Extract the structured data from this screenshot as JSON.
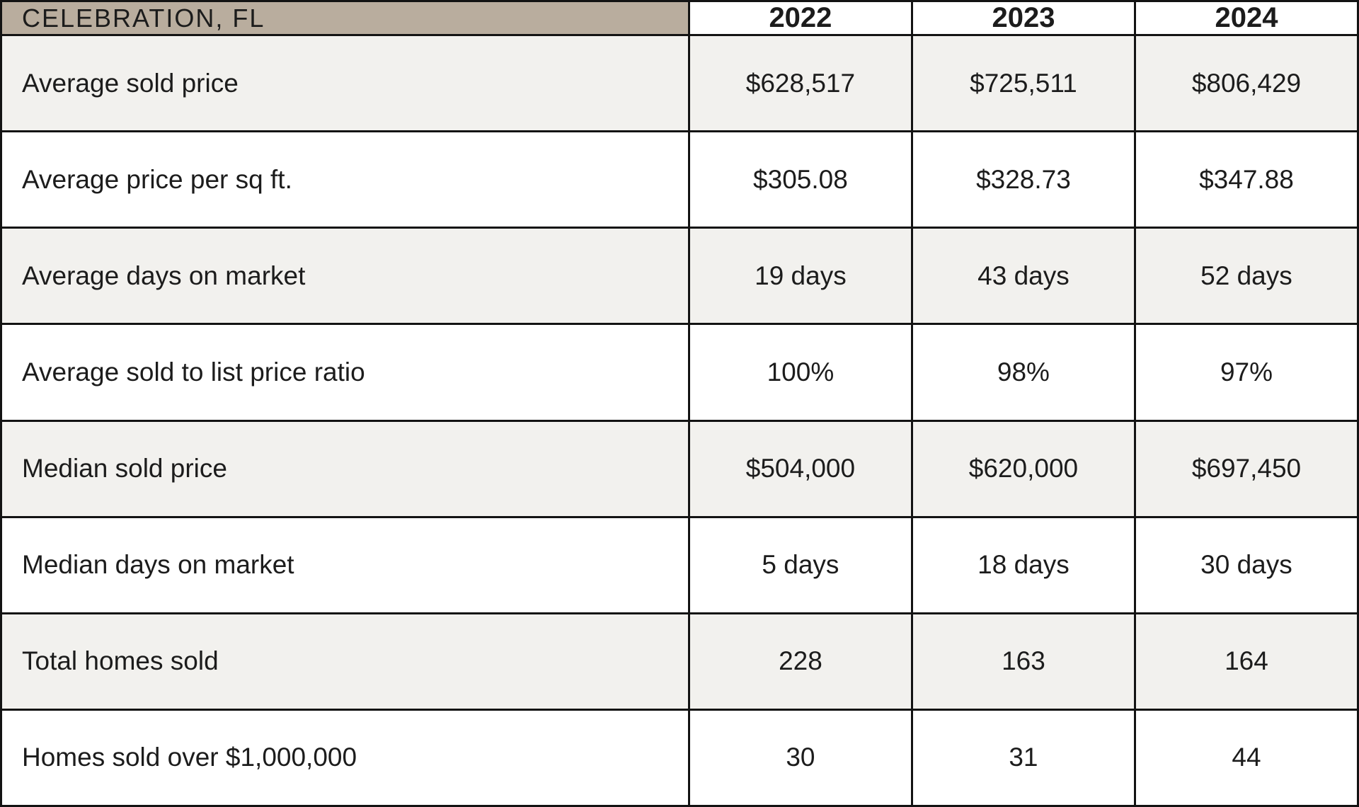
{
  "chart_data": {
    "type": "table",
    "title": "CELEBRATION, FL",
    "years": [
      "2022",
      "2023",
      "2024"
    ],
    "rows": [
      {
        "label": "Average sold price",
        "values": [
          "$628,517",
          "$725,511",
          "$806,429"
        ]
      },
      {
        "label": "Average price per sq ft.",
        "values": [
          "$305.08",
          "$328.73",
          "$347.88"
        ]
      },
      {
        "label": "Average days on market",
        "values": [
          "19 days",
          "43 days",
          "52 days"
        ]
      },
      {
        "label": "Average sold to list price ratio",
        "values": [
          "100%",
          "98%",
          "97%"
        ]
      },
      {
        "label": "Median sold price",
        "values": [
          "$504,000",
          "$620,000",
          "$697,450"
        ]
      },
      {
        "label": "Median days on market",
        "values": [
          "5 days",
          "18 days",
          "30 days"
        ]
      },
      {
        "label": "Total homes sold",
        "values": [
          "228",
          "163",
          "164"
        ]
      },
      {
        "label": "Homes sold over $1,000,000",
        "values": [
          "30",
          "31",
          "44"
        ]
      }
    ],
    "layout_hints": {
      "header_column_bg": "tan",
      "alternating_rows": true,
      "grid": "on"
    }
  },
  "colors": {
    "header_bg": "#b9ad9e",
    "row_alt_bg": "#f2f1ee",
    "row_bg": "#ffffff",
    "border": "#131313",
    "text": "#1c1c1c"
  }
}
